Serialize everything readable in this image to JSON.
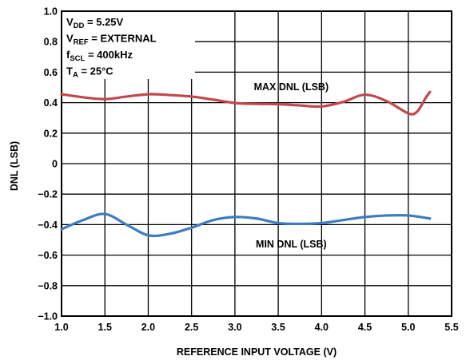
{
  "chart_data": {
    "type": "line",
    "xlabel": "REFERENCE INPUT VOLTAGE (V)",
    "ylabel": "DNL (LSB)",
    "xlim": [
      1.0,
      5.5
    ],
    "ylim": [
      -1.0,
      1.0
    ],
    "grid": true,
    "x_ticks": [
      "1.0",
      "1.5",
      "2.0",
      "2.5",
      "3.0",
      "3.5",
      "4.0",
      "4.5",
      "5.0",
      "5.5"
    ],
    "y_ticks": [
      "1.0",
      "0.8",
      "0.6",
      "0.4",
      "0.2",
      "0",
      "−0.2",
      "−0.4",
      "−0.6",
      "−0.8",
      "−1.0"
    ],
    "conditions": [
      {
        "main": "V",
        "sub": "DD",
        "rest": " = 5.25V"
      },
      {
        "main": "V",
        "sub": "REF",
        "rest": " = EXTERNAL"
      },
      {
        "main": "f",
        "sub": "SCL",
        "rest": " = 400kHz"
      },
      {
        "main": "T",
        "sub": "A",
        "rest": " = 25°C"
      }
    ],
    "series": [
      {
        "name": "MAX DNL (LSB)",
        "color": "#c0484d",
        "label_at": [
          3.65,
          0.505
        ],
        "points": [
          [
            1.0,
            0.455
          ],
          [
            1.25,
            0.435
          ],
          [
            1.5,
            0.423
          ],
          [
            1.75,
            0.44
          ],
          [
            2.0,
            0.455
          ],
          [
            2.25,
            0.45
          ],
          [
            2.5,
            0.44
          ],
          [
            2.75,
            0.42
          ],
          [
            3.0,
            0.398
          ],
          [
            3.25,
            0.392
          ],
          [
            3.5,
            0.39
          ],
          [
            3.75,
            0.382
          ],
          [
            4.0,
            0.375
          ],
          [
            4.25,
            0.405
          ],
          [
            4.5,
            0.452
          ],
          [
            4.75,
            0.41
          ],
          [
            5.0,
            0.33
          ],
          [
            5.1,
            0.34
          ],
          [
            5.2,
            0.43
          ],
          [
            5.25,
            0.47
          ]
        ]
      },
      {
        "name": "MIN DNL (LSB)",
        "color": "#3d7cc0",
        "label_at": [
          3.65,
          -0.525
        ],
        "points": [
          [
            1.0,
            -0.43
          ],
          [
            1.25,
            -0.37
          ],
          [
            1.5,
            -0.33
          ],
          [
            1.75,
            -0.4
          ],
          [
            2.0,
            -0.47
          ],
          [
            2.25,
            -0.46
          ],
          [
            2.5,
            -0.42
          ],
          [
            2.75,
            -0.37
          ],
          [
            3.0,
            -0.35
          ],
          [
            3.25,
            -0.36
          ],
          [
            3.5,
            -0.39
          ],
          [
            3.75,
            -0.395
          ],
          [
            4.0,
            -0.39
          ],
          [
            4.25,
            -0.37
          ],
          [
            4.5,
            -0.35
          ],
          [
            4.75,
            -0.34
          ],
          [
            5.0,
            -0.34
          ],
          [
            5.25,
            -0.36
          ]
        ]
      }
    ]
  }
}
